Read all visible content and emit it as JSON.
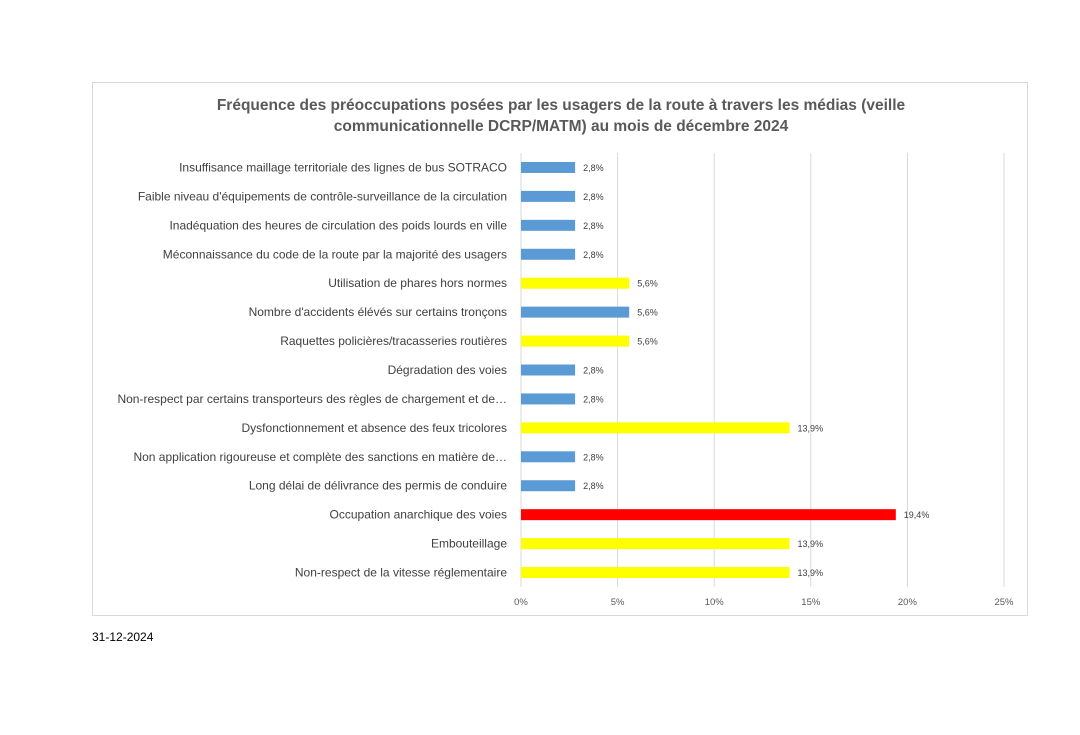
{
  "chart_data": {
    "type": "bar",
    "orientation": "horizontal",
    "title_lines": [
      "Fréquence des préoccupations posées par les usagers de la route à travers les médias (veille",
      "communicationnelle DCRP/MATM) au mois de décembre 2024"
    ],
    "categories": [
      "Insuffisance maillage territoriale des lignes de bus SOTRACO",
      "Faible niveau d'équipements de contrôle-surveillance de la circulation",
      "Inadéquation des heures de circulation des poids lourds en ville",
      "Méconnaissance du code de la route par la majorité des usagers",
      "Utilisation de phares hors normes",
      "Nombre d'accidents élévés sur certains tronçons",
      "Raquettes policières/tracasseries routières",
      "Dégradation des voies",
      "Non-respect par certains transporteurs des règles de chargement et de…",
      "Dysfonctionnement et absence des feux tricolores",
      "Non application rigoureuse et complète des sanctions en matière de…",
      "Long délai de délivrance des permis de conduire",
      "Occupation anarchique des voies",
      "Embouteillage",
      "Non-respect de la vitesse réglementaire"
    ],
    "values": [
      2.8,
      2.8,
      2.8,
      2.8,
      5.6,
      5.6,
      5.6,
      2.8,
      2.8,
      13.9,
      2.8,
      2.8,
      19.4,
      13.9,
      13.9
    ],
    "data_labels": [
      "2,8%",
      "2,8%",
      "2,8%",
      "2,8%",
      "5,6%",
      "5,6%",
      "5,6%",
      "2,8%",
      "2,8%",
      "13,9%",
      "2,8%",
      "2,8%",
      "19,4%",
      "13,9%",
      "13,9%"
    ],
    "bar_colors": [
      "#5b9bd5",
      "#5b9bd5",
      "#5b9bd5",
      "#5b9bd5",
      "#ffff00",
      "#5b9bd5",
      "#ffff00",
      "#5b9bd5",
      "#5b9bd5",
      "#ffff00",
      "#5b9bd5",
      "#5b9bd5",
      "#ff0000",
      "#ffff00",
      "#ffff00"
    ],
    "xlim": [
      0,
      25
    ],
    "xticks": [
      0,
      5,
      10,
      15,
      20,
      25
    ],
    "xtick_labels": [
      "0%",
      "5%",
      "10%",
      "15%",
      "20%",
      "25%"
    ],
    "grid": "vertical",
    "legend": "none"
  },
  "footer": {
    "date": "31-12-2024"
  }
}
